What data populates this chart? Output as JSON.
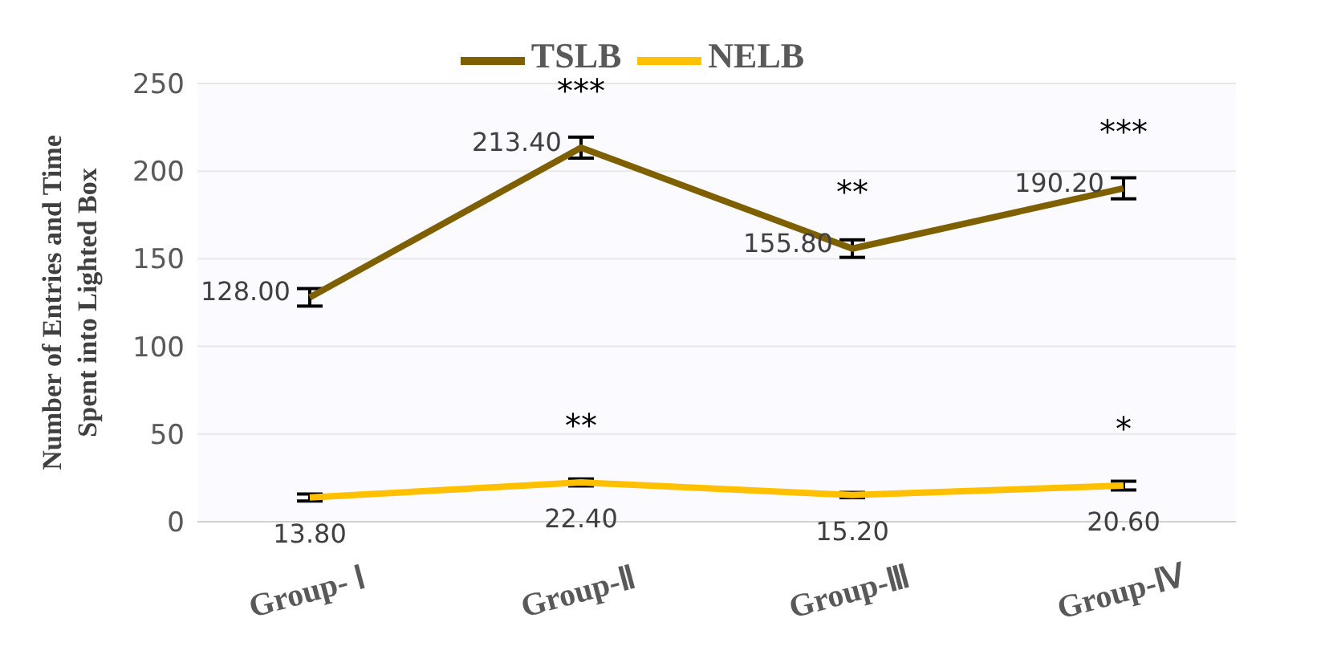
{
  "chart_data": {
    "type": "line",
    "ylabel": "Number of Entries and Time Spent into Lighted Box",
    "categories": [
      "Group- Ⅰ",
      "Group-Ⅱ",
      "Group-Ⅲ",
      "Group-Ⅳ"
    ],
    "series": [
      {
        "name": "TSLB",
        "color": "#7f6000",
        "values": [
          128,
          213.4,
          155.8,
          190.2
        ],
        "errors": [
          5,
          6,
          5,
          6
        ],
        "value_labels": [
          "128.00",
          "213.40",
          "155.80",
          "190.20"
        ]
      },
      {
        "name": "NELB",
        "color": "#ffc000",
        "values": [
          13.8,
          22.4,
          15.2,
          20.6
        ],
        "errors": [
          2,
          2,
          1.5,
          2.5
        ],
        "value_labels": [
          "13.80",
          "22.40",
          "15.20",
          "20.60"
        ]
      }
    ],
    "ylim": [
      0,
      250
    ],
    "yticks": [
      0,
      50,
      100,
      150,
      200,
      250
    ],
    "grid": "y",
    "legend": "top",
    "marker": "none",
    "line_style": "solid",
    "annotations": [
      {
        "text": "***",
        "x": "Group-Ⅱ",
        "y": 213.4
      },
      {
        "text": "**",
        "x": "Group-Ⅲ",
        "y": 155.8
      },
      {
        "text": "***",
        "x": "Group-Ⅳ",
        "y": 190.2
      },
      {
        "text": "**",
        "x": "Group-Ⅱ",
        "y": 22.4
      },
      {
        "text": "*",
        "x": "Group-Ⅳ",
        "y": 20.6
      }
    ]
  }
}
